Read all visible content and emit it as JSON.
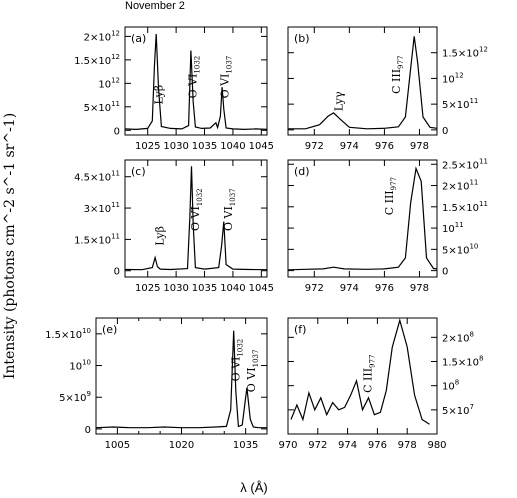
{
  "figure": {
    "header": "November 2",
    "ylabel": "Intensity (photons cm^-2 s^-1 sr^-1)",
    "xlabel": "λ (Å)"
  },
  "chart_data": [
    {
      "panel": "(a)",
      "type": "line",
      "yaxis_side": "left",
      "xlim": [
        1021,
        1046
      ],
      "ylim": [
        -100000000000.0,
        2200000000000.0
      ],
      "xticks": [
        1025,
        1030,
        1035,
        1040,
        1045
      ],
      "xtick_labels": [
        "1025",
        "1030",
        "1035",
        "1040",
        "1045"
      ],
      "yticks": [
        0,
        500000000000.0,
        1000000000000.0,
        1500000000000.0,
        2000000000000.0
      ],
      "ytick_labels": [
        {
          "m": "0",
          "e": ""
        },
        {
          "m": "5×10",
          "e": "11"
        },
        {
          "m": "10",
          "e": "12"
        },
        {
          "m": "1.5×10",
          "e": "12"
        },
        {
          "m": "2×10",
          "e": "12"
        }
      ],
      "x": [
        1021.0,
        1023.0,
        1025.0,
        1025.8,
        1026.2,
        1026.5,
        1026.9,
        1027.4,
        1029.0,
        1031.0,
        1032.2,
        1032.6,
        1033.0,
        1033.4,
        1034.5,
        1036.0,
        1037.0,
        1037.3,
        1037.8,
        1038.1,
        1038.4,
        1038.8,
        1040.0,
        1042.0,
        1044.0,
        1046.0
      ],
      "y": [
        30000000000.0,
        20000000000.0,
        40000000000.0,
        200000000000.0,
        1400000000000.0,
        2050000000000.0,
        900000000000.0,
        80000000000.0,
        40000000000.0,
        30000000000.0,
        100000000000.0,
        1700000000000.0,
        600000000000.0,
        70000000000.0,
        40000000000.0,
        50000000000.0,
        160000000000.0,
        60000000000.0,
        300000000000.0,
        920000000000.0,
        450000000000.0,
        50000000000.0,
        30000000000.0,
        20000000000.0,
        30000000000.0,
        20000000000.0
      ],
      "annotations": [
        {
          "main": "Lyβ",
          "sub": "",
          "x": 1027.6,
          "y": 550000000000.0
        },
        {
          "main": "O VI",
          "sub": "1032",
          "x": 1033.6,
          "y": 680000000000.0
        },
        {
          "main": "O VI",
          "sub": "1037",
          "x": 1039.2,
          "y": 680000000000.0
        }
      ]
    },
    {
      "panel": "(b)",
      "type": "line",
      "yaxis_side": "right",
      "xlim": [
        970.5,
        979
      ],
      "ylim": [
        -100000000000.0,
        2000000000000.0
      ],
      "xticks": [
        972,
        974,
        976,
        978
      ],
      "xtick_labels": [
        "972",
        "974",
        "976",
        "978"
      ],
      "yticks": [
        0,
        500000000000.0,
        1000000000000.0,
        1500000000000.0
      ],
      "ytick_labels": [
        {
          "m": "0",
          "e": ""
        },
        {
          "m": "5×10",
          "e": "11"
        },
        {
          "m": "10",
          "e": "12"
        },
        {
          "m": "1.5×10",
          "e": "12"
        }
      ],
      "x": [
        970.5,
        971.5,
        972.3,
        972.8,
        973.1,
        973.5,
        974.0,
        975.0,
        976.0,
        976.8,
        977.2,
        977.5,
        977.7,
        977.9,
        978.2,
        978.6,
        979.0
      ],
      "y": [
        20000000000.0,
        20000000000.0,
        100000000000.0,
        270000000000.0,
        330000000000.0,
        200000000000.0,
        50000000000.0,
        20000000000.0,
        30000000000.0,
        60000000000.0,
        250000000000.0,
        1200000000000.0,
        1820000000000.0,
        1300000000000.0,
        250000000000.0,
        50000000000.0,
        30000000000.0
      ],
      "annotations": [
        {
          "main": "Lyγ",
          "sub": "",
          "x": 973.6,
          "y": 360000000000.0
        },
        {
          "main": "C III",
          "sub": "977",
          "x": 976.9,
          "y": 700000000000.0
        }
      ]
    },
    {
      "panel": "(c)",
      "type": "line",
      "yaxis_side": "left",
      "xlim": [
        1021,
        1046
      ],
      "ylim": [
        -30000000000.0,
        530000000000.0
      ],
      "xticks": [
        1025,
        1030,
        1035,
        1040,
        1045
      ],
      "xtick_labels": [
        "1025",
        "1030",
        "1035",
        "1040",
        "1045"
      ],
      "yticks": [
        0,
        150000000000.0,
        300000000000.0,
        450000000000.0
      ],
      "ytick_labels": [
        {
          "m": "0",
          "e": ""
        },
        {
          "m": "1.5×10",
          "e": "11"
        },
        {
          "m": "3×10",
          "e": "11"
        },
        {
          "m": "4.5×10",
          "e": "11"
        }
      ],
      "x": [
        1021.0,
        1024.0,
        1025.8,
        1026.3,
        1026.7,
        1027.2,
        1029.0,
        1032.0,
        1032.4,
        1032.7,
        1033.0,
        1033.4,
        1035.0,
        1037.5,
        1038.0,
        1038.4,
        1038.8,
        1040.0,
        1043.0,
        1046.0
      ],
      "y": [
        6000000000.0,
        5000000000.0,
        15000000000.0,
        63000000000.0,
        20000000000.0,
        8000000000.0,
        6000000000.0,
        10000000000.0,
        250000000000.0,
        500000000000.0,
        220000000000.0,
        15000000000.0,
        8000000000.0,
        15000000000.0,
        120000000000.0,
        235000000000.0,
        30000000000.0,
        8000000000.0,
        6000000000.0,
        5000000000.0
      ],
      "annotations": [
        {
          "main": "Lyβ",
          "sub": "",
          "x": 1027.8,
          "y": 120000000000.0
        },
        {
          "main": "O VI",
          "sub": "1032",
          "x": 1034.0,
          "y": 190000000000.0
        },
        {
          "main": "O VI",
          "sub": "1037",
          "x": 1039.8,
          "y": 190000000000.0
        }
      ]
    },
    {
      "panel": "(d)",
      "type": "line",
      "yaxis_side": "right",
      "xlim": [
        970.5,
        979
      ],
      "ylim": [
        -15000000000.0,
        260000000000.0
      ],
      "xticks": [
        972,
        974,
        976,
        978
      ],
      "xtick_labels": [
        "972",
        "974",
        "976",
        "978"
      ],
      "yticks": [
        0,
        50000000000.0,
        100000000000.0,
        150000000000.0,
        200000000000.0,
        250000000000.0
      ],
      "ytick_labels": [
        {
          "m": "0",
          "e": ""
        },
        {
          "m": "5×10",
          "e": "10"
        },
        {
          "m": "10",
          "e": "11"
        },
        {
          "m": "1.5×10",
          "e": "11"
        },
        {
          "m": "2×10",
          "e": "11"
        },
        {
          "m": "2.5×10",
          "e": "11"
        }
      ],
      "x": [
        970.5,
        971.5,
        972.5,
        973.1,
        973.7,
        975.0,
        976.0,
        976.8,
        977.2,
        977.5,
        977.8,
        978.1,
        978.4,
        978.8,
        979.0
      ],
      "y": [
        2000000000.0,
        3000000000.0,
        4000000000.0,
        8000000000.0,
        4000000000.0,
        3000000000.0,
        4000000000.0,
        8000000000.0,
        30000000000.0,
        160000000000.0,
        240000000000.0,
        210000000000.0,
        30000000000.0,
        5000000000.0,
        4000000000.0
      ],
      "annotations": [
        {
          "main": "C III",
          "sub": "977",
          "x": 976.5,
          "y": 130000000000.0
        }
      ]
    },
    {
      "panel": "(e)",
      "type": "line",
      "yaxis_side": "left",
      "xlim": [
        1000,
        1040
      ],
      "ylim": [
        -800000000.0,
        17500000000.0
      ],
      "xticks": [
        1005,
        1020,
        1035
      ],
      "xtick_labels": [
        "1005",
        "1020",
        "1035"
      ],
      "minor_xticks": [
        1010,
        1015,
        1025,
        1030
      ],
      "yticks": [
        0,
        5000000000.0,
        10000000000.0,
        15000000000.0
      ],
      "ytick_labels": [
        {
          "m": "0",
          "e": ""
        },
        {
          "m": "5×10",
          "e": "9"
        },
        {
          "m": "10",
          "e": "10"
        },
        {
          "m": "1.5×10",
          "e": "10"
        }
      ],
      "x": [
        1000,
        1004,
        1008,
        1012,
        1016,
        1020,
        1024,
        1028,
        1030.5,
        1031.5,
        1032.2,
        1032.7,
        1033.3,
        1034.2,
        1035.3,
        1036.1,
        1036.8,
        1038,
        1040
      ],
      "y": [
        200000000.0,
        300000000.0,
        200000000.0,
        200000000.0,
        300000000.0,
        200000000.0,
        200000000.0,
        300000000.0,
        400000000.0,
        3000000000.0,
        15500000000.0,
        6000000000.0,
        400000000.0,
        600000000.0,
        6500000000.0,
        1500000000.0,
        300000000.0,
        200000000.0,
        200000000.0
      ],
      "annotations": [
        {
          "main": "O VI",
          "sub": "1032",
          "x": 1033.6,
          "y": 7500000000.0
        },
        {
          "main": "O VI",
          "sub": "1037",
          "x": 1037.2,
          "y": 5800000000.0
        }
      ]
    },
    {
      "panel": "(f)",
      "type": "line",
      "yaxis_side": "right",
      "xlim": [
        970,
        980
      ],
      "ylim": [
        0,
        240000000.0
      ],
      "xticks": [
        970,
        972,
        974,
        976,
        978,
        980
      ],
      "xtick_labels": [
        "970",
        "972",
        "974",
        "976",
        "978",
        "980"
      ],
      "yticks": [
        50000000.0,
        100000000.0,
        150000000.0,
        200000000.0
      ],
      "ytick_labels": [
        {
          "m": "5×10",
          "e": "7"
        },
        {
          "m": "10",
          "e": "8"
        },
        {
          "m": "1.5×10",
          "e": "8"
        },
        {
          "m": "2×10",
          "e": "8"
        }
      ],
      "x": [
        970.2,
        970.6,
        971.0,
        971.4,
        971.8,
        972.2,
        972.6,
        973.0,
        973.4,
        973.8,
        974.2,
        974.6,
        975.0,
        975.4,
        975.8,
        976.2,
        976.6,
        977.0,
        977.5,
        978.0,
        978.5,
        979.0,
        979.5
      ],
      "y": [
        30000000.0,
        60000000.0,
        30000000.0,
        85000000.0,
        50000000.0,
        75000000.0,
        40000000.0,
        65000000.0,
        50000000.0,
        55000000.0,
        80000000.0,
        110000000.0,
        50000000.0,
        75000000.0,
        40000000.0,
        45000000.0,
        90000000.0,
        180000000.0,
        235000000.0,
        180000000.0,
        80000000.0,
        30000000.0,
        20000000.0
      ],
      "annotations": [
        {
          "main": "C III",
          "sub": "977",
          "x": 975.6,
          "y": 85000000.0
        }
      ]
    }
  ]
}
